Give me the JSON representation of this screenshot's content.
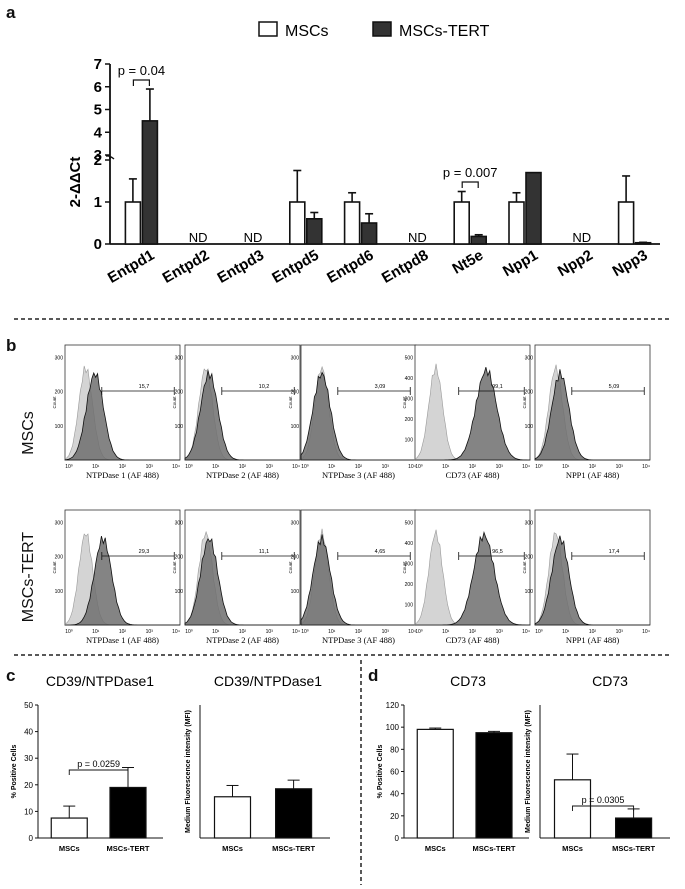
{
  "panels": {
    "a": "a",
    "b": "b",
    "c": "c",
    "d": "d"
  },
  "colors": {
    "mscs": "#ffffff",
    "mscs_tert": "#333333",
    "tert_black": "#000000",
    "hist_light": "#d4d4d4",
    "hist_dark": "#6e6e6e",
    "line": "#111111"
  },
  "chart_data": [
    {
      "id": "a",
      "type": "bar",
      "title": "",
      "ylabel": "2-ΔΔCt",
      "legend": [
        "MSCs",
        "MSCs-TERT"
      ],
      "legend_position": "top",
      "categories": [
        "Entpd1",
        "Entpd2",
        "Entpd3",
        "Entpd5",
        "Entpd6",
        "Entpd8",
        "Nt5e",
        "Npp1",
        "Npp2",
        "Npp3"
      ],
      "ylim": [
        0,
        7
      ],
      "axis_break": [
        2,
        3
      ],
      "yticks_lower": [
        "0",
        "1",
        "2"
      ],
      "yticks_upper": [
        "3",
        "4",
        "5",
        "6",
        "7"
      ],
      "series": [
        {
          "name": "MSCs",
          "values": [
            1,
            null,
            null,
            1,
            1,
            null,
            1,
            1,
            null,
            1
          ],
          "errors": [
            0.55,
            null,
            null,
            0.75,
            0.22,
            null,
            0.25,
            0.22,
            null,
            0.62
          ]
        },
        {
          "name": "MSCs-TERT",
          "values": [
            4.5,
            null,
            null,
            0.6,
            0.5,
            null,
            0.18,
            1.7,
            null,
            0.03
          ],
          "errors": [
            1.4,
            null,
            null,
            0.15,
            0.22,
            null,
            0.04,
            0.5,
            null,
            0.01
          ]
        }
      ],
      "nd_label": "ND",
      "annotations": [
        {
          "text": "p = 0.04",
          "category": "Entpd1"
        },
        {
          "text": "p = 0.007",
          "category": "Nt5e"
        }
      ]
    },
    {
      "id": "c1",
      "type": "bar",
      "title": "CD39/NTPDase1",
      "ylabel": "% Positive Cells",
      "categories": [
        "MSCs",
        "MSCs-TERT"
      ],
      "values": [
        7.5,
        19
      ],
      "errors": [
        4.5,
        7.5
      ],
      "ylim": [
        0,
        50
      ],
      "yticks": [
        "0",
        "10",
        "20",
        "30",
        "40",
        "50"
      ],
      "annotation": "p = 0.0259"
    },
    {
      "id": "c2",
      "type": "bar",
      "title": "CD39/NTPDase1",
      "ylabel": "Medium Fluorescence intensity (MFI)",
      "categories": [
        "MSCs",
        "MSCs-TERT"
      ],
      "values": [
        31,
        37
      ],
      "errors": [
        8.5,
        6.5
      ],
      "ylim": [
        0,
        100
      ],
      "yticks": []
    },
    {
      "id": "d1",
      "type": "bar",
      "title": "CD73",
      "ylabel": "% Positive Cells",
      "categories": [
        "MSCs",
        "MSCs-TERT"
      ],
      "values": [
        98,
        95
      ],
      "errors": [
        1.2,
        1.2
      ],
      "ylim": [
        0,
        120
      ],
      "yticks": [
        "0",
        "20",
        "40",
        "60",
        "80",
        "100",
        "120"
      ]
    },
    {
      "id": "d2",
      "type": "bar",
      "title": "CD73",
      "ylabel": "Medium Fluorescence intensity (MFI)",
      "categories": [
        "MSCs",
        "MSCs-TERT"
      ],
      "values": [
        350,
        120
      ],
      "errors": [
        155,
        55
      ],
      "ylim": [
        0,
        800
      ],
      "yticks": [],
      "annotation": "p = 0.0305"
    }
  ],
  "flow": {
    "row_labels": [
      "MSCs",
      "MSCs-TERT"
    ],
    "count_label": "Count",
    "xticks": [
      "10⁰",
      "10¹",
      "10²",
      "10³",
      "10⁴"
    ],
    "columns": [
      {
        "xlabel": "NTPDase 1 (AF 488)",
        "values": [
          "15,7",
          "29,3"
        ],
        "yticks": [
          "100",
          "200",
          "300"
        ],
        "shift": 0.08
      },
      {
        "xlabel": "NTPDase 2 (AF 488)",
        "values": [
          "10,2",
          "11,1"
        ],
        "yticks": [
          "100",
          "200",
          "300"
        ],
        "shift": 0.03
      },
      {
        "xlabel": "NTPDase 3 (AF 488)",
        "values": [
          "3,09",
          "4,65"
        ],
        "yticks": [
          "100",
          "200",
          "300"
        ],
        "shift": 0.0
      },
      {
        "xlabel": "CD73 (AF 488)",
        "values": [
          "99,1",
          "96,5"
        ],
        "yticks": [
          "100",
          "200",
          "300",
          "400",
          "500"
        ],
        "shift": 0.38
      },
      {
        "xlabel": "NPP1 (AF 488)",
        "values": [
          "5,09",
          "17,4"
        ],
        "yticks": [
          "100",
          "200",
          "300"
        ],
        "shift": 0.04
      }
    ]
  }
}
